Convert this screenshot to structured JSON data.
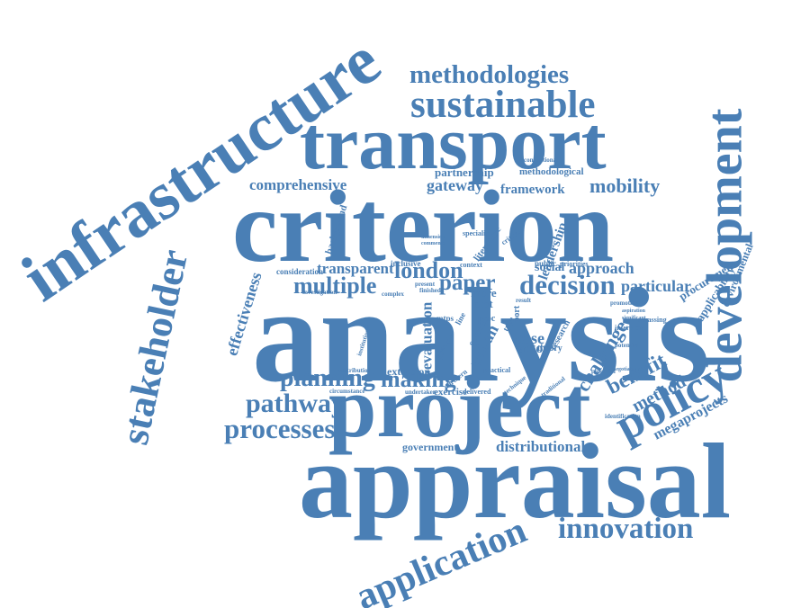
{
  "colors": {
    "word": "#4a7fb5",
    "background": "#ffffff"
  },
  "words": {
    "infrastructure": "infrastructure",
    "methodologies": "methodologies",
    "sustainable": "sustainable",
    "transport": "transport",
    "development": "development",
    "stakeholder": "stakeholder",
    "criterion": "criterion",
    "comprehensive": "comprehensive",
    "partnership": "partnership",
    "gateway": "gateway",
    "framework": "framework",
    "mobility": "mobility",
    "methodological": "methodological",
    "background": "background",
    "literature": "literature",
    "transparent": "transparent",
    "london": "london",
    "multiple": "multiple",
    "paper": "paper",
    "decision": "decision",
    "consideration": "consideration",
    "inclusive": "inclusive",
    "effectiveness": "effectiveness",
    "social": "social",
    "approach": "approach",
    "particular": "particular",
    "leadership": "leadership",
    "procurement": "procurement",
    "applicability": "applicability",
    "environmental": "environmental",
    "analysis": "analysis",
    "evaluation": "evaluation",
    "case": "case",
    "actor": "actor",
    "urban": "urban",
    "several": "several",
    "cost": "cost",
    "more": "more",
    "private": "private",
    "public": "public",
    "priorities": "priorities",
    "planning": "planning",
    "making": "making",
    "extension": "extension",
    "challenge": "challenge",
    "benefit": "benefit",
    "method": "method",
    "policy": "policy",
    "megaprojects": "megaprojects",
    "pathway": "pathway",
    "processes": "processes",
    "project": "project",
    "government": "government",
    "distributional": "distributional",
    "appraisal": "appraisal",
    "application": "application",
    "innovation": "innovation",
    "exercise": "exercise",
    "delivered": "delivered",
    "practical": "practical",
    "theory": "theory",
    "research": "research",
    "interview": "interview",
    "potential": "potential",
    "identification": "identification",
    "amassing": "amassing",
    "promoting": "promoting",
    "conventional": "conventional",
    "specialist": "specialist",
    "context": "context",
    "complex": "complex",
    "finished": "finished",
    "investigation": "investigation",
    "institutional": "institutional",
    "contribution": "contribution",
    "circumstance": "circumstance",
    "undertaken": "undertaken",
    "northern": "northern",
    "traditional": "traditional",
    "powerful": "powerful",
    "negotiation": "negotiation",
    "aspiration": "aspiration",
    "significant": "significant",
    "result": "result",
    "technique": "technique",
    "critical": "critical",
    "port": "port",
    "mtps": "mtps",
    "line": "line",
    "proc": "proc",
    "type": "type",
    "present": "present",
    "dimension": "dimension",
    "commence": "commence"
  }
}
